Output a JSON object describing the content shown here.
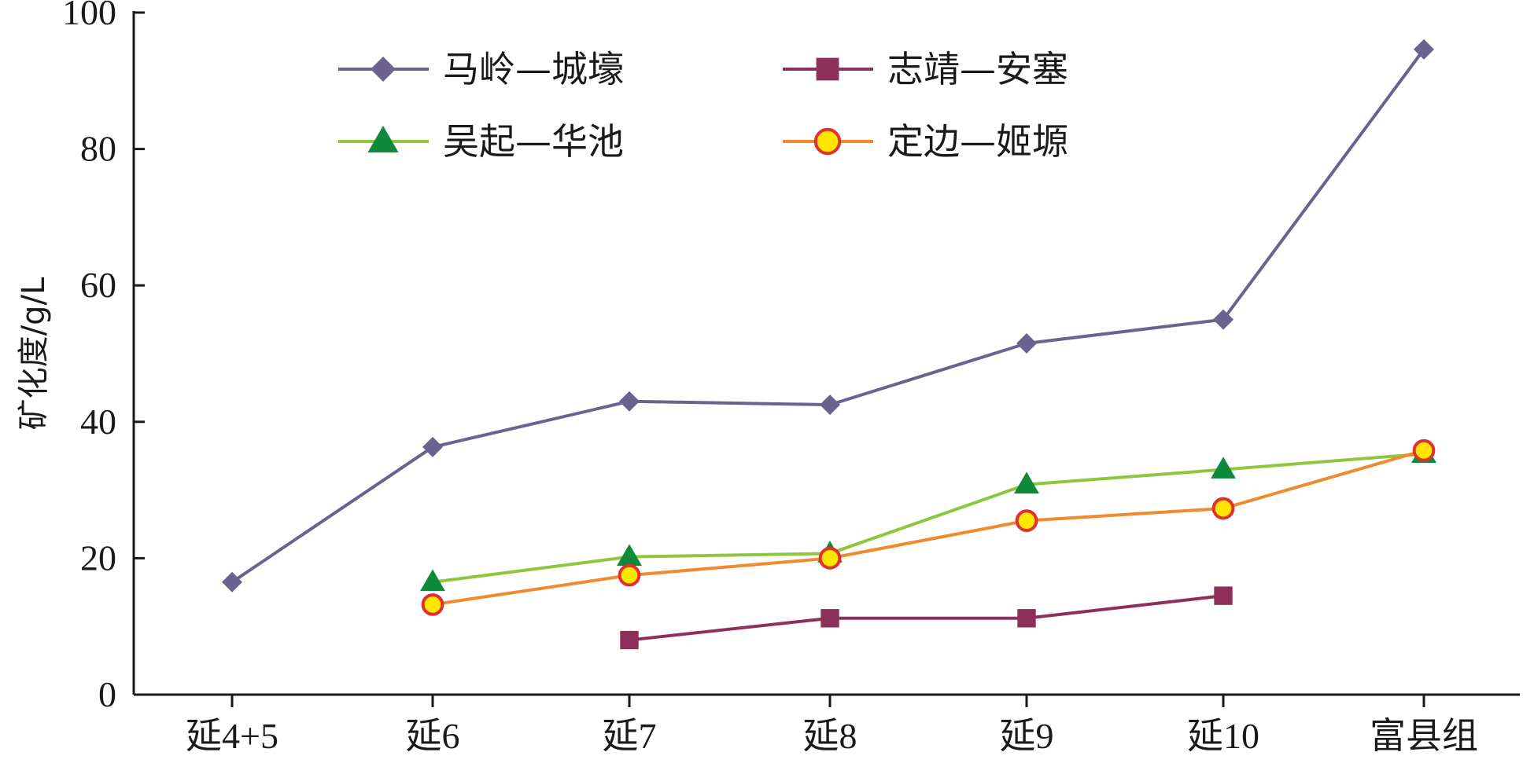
{
  "chart_data": {
    "type": "line",
    "title": "",
    "xlabel": "",
    "ylabel": "矿化度/g/L",
    "categories": [
      "延4+5",
      "延6",
      "延7",
      "延8",
      "延9",
      "延10",
      "富县组"
    ],
    "ylim": [
      0,
      100
    ],
    "yticks": [
      0,
      20,
      40,
      60,
      80,
      100
    ],
    "grid": false,
    "legend_position": "top, two columns",
    "series": [
      {
        "name": "马岭—城壕",
        "color": "#6b6290",
        "marker": "diamond",
        "values": [
          16.5,
          36.3,
          43.0,
          42.5,
          51.5,
          55.0,
          94.6
        ]
      },
      {
        "name": "志靖—安塞",
        "color": "#8e2f5a",
        "marker": "square",
        "values": [
          null,
          null,
          8.0,
          11.2,
          11.2,
          14.5,
          null
        ]
      },
      {
        "name": "吴起—华池",
        "color": "#8dc63f",
        "marker": "triangle",
        "marker_fill": "#0f8a3a",
        "values": [
          null,
          16.5,
          20.2,
          20.7,
          30.8,
          33.0,
          35.3
        ]
      },
      {
        "name": "定边—姬塬",
        "color": "#f08a2e",
        "marker": "circle",
        "marker_fill": "#ffe600",
        "marker_stroke": "#e03030",
        "values": [
          null,
          13.2,
          17.5,
          20.0,
          25.5,
          27.3,
          35.8
        ]
      }
    ]
  }
}
